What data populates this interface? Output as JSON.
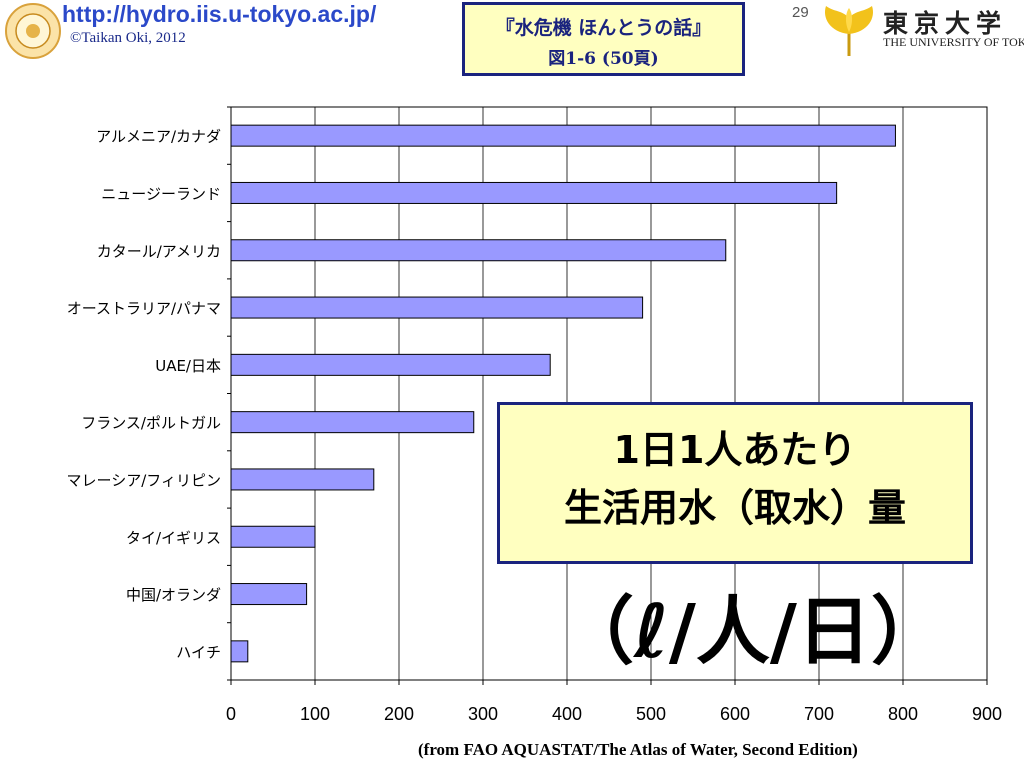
{
  "header": {
    "url": "http://hydro.iis.u-tokyo.ac.jp/",
    "copyright": "©Taikan Oki, 2012",
    "slide_number": "29"
  },
  "title": {
    "line1": "『水危機 ほんとうの話』",
    "line2": "図1-6 (50頁)"
  },
  "university": {
    "name_ja": "東京大学",
    "name_en": "THE UNIVERSITY OF TOKYO"
  },
  "callout": {
    "line1": "1日1人あたり",
    "line2": "生活用水（取水）量"
  },
  "unit_label": "（ℓ/人/日）",
  "source": "(from FAO AQUASTAT/The Atlas of Water, Second Edition)",
  "colors": {
    "bar_fill": "#9999ff",
    "accent_border": "#1a237e",
    "box_fill": "#ffffc0"
  },
  "chart_data": {
    "type": "bar",
    "orientation": "horizontal",
    "categories": [
      "アルメニア/カナダ",
      "ニュージーランド",
      "カタール/アメリカ",
      "オーストラリア/パナマ",
      "UAE/日本",
      "フランス/ポルトガル",
      "マレーシア/フィリピン",
      "タイ/イギリス",
      "中国/オランダ",
      "ハイチ"
    ],
    "values": [
      791,
      721,
      589,
      490,
      380,
      289,
      170,
      100,
      90,
      20
    ],
    "xlim": [
      0,
      900
    ],
    "xticks": [
      "0",
      "100",
      "200",
      "300",
      "400",
      "500",
      "600",
      "700",
      "800",
      "900"
    ],
    "grid": true,
    "title": "",
    "xlabel": "",
    "ylabel": ""
  }
}
